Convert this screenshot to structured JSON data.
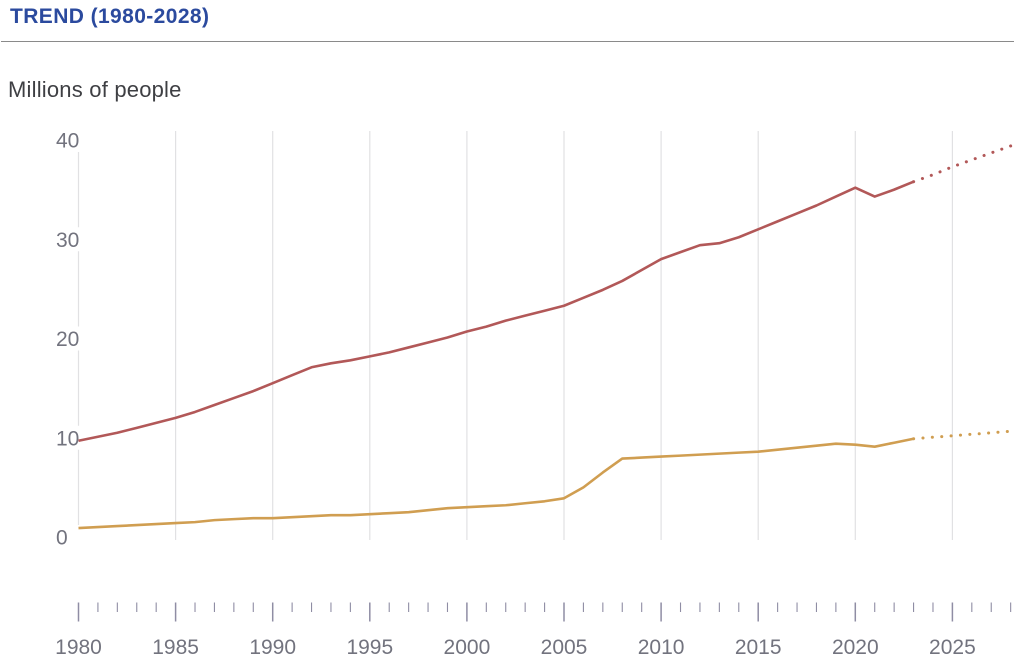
{
  "header": {
    "title": "TREND (1980-2028)",
    "unit_label": "Millions of people"
  },
  "colors": {
    "title": "#2b4a9e",
    "divider": "#8a8a8a",
    "axis_text": "#72737e",
    "tick": "#8f8da4",
    "grid": "#e1e1e3",
    "upper_series": "#b25858",
    "lower_series": "#d09e51"
  },
  "chart_data": {
    "type": "line",
    "title": "TREND (1980-2028)",
    "xlabel": "",
    "ylabel": "Millions of people",
    "xlim": [
      1980,
      2028
    ],
    "ylim": [
      0,
      40
    ],
    "y_ticks": [
      0,
      10,
      20,
      30,
      40
    ],
    "x_major_ticks": [
      1980,
      1985,
      1990,
      1995,
      2000,
      2005,
      2010,
      2015,
      2020,
      2025
    ],
    "x_minor_tick_range": [
      1980,
      2028
    ],
    "grid": "vertical-only",
    "legend_position": "none",
    "series": [
      {
        "name": "upper-line",
        "color": "#b25858",
        "solid": {
          "x": [
            1980,
            1981,
            1982,
            1983,
            1984,
            1985,
            1986,
            1987,
            1988,
            1989,
            1990,
            1991,
            1992,
            1993,
            1994,
            1995,
            1996,
            1997,
            1998,
            1999,
            2000,
            2001,
            2002,
            2003,
            2004,
            2005,
            2006,
            2007,
            2008,
            2009,
            2010,
            2011,
            2012,
            2013,
            2014,
            2015,
            2016,
            2017,
            2018,
            2019,
            2020,
            2021,
            2022,
            2023
          ],
          "y": [
            9.7,
            10.1,
            10.5,
            11.0,
            11.5,
            12.0,
            12.6,
            13.3,
            14.0,
            14.7,
            15.5,
            16.3,
            17.1,
            17.5,
            17.8,
            18.2,
            18.6,
            19.1,
            19.6,
            20.1,
            20.7,
            21.2,
            21.8,
            22.3,
            22.8,
            23.3,
            24.1,
            24.9,
            25.8,
            26.9,
            28.0,
            28.7,
            29.4,
            29.6,
            30.2,
            31.0,
            31.8,
            32.6,
            33.4,
            34.3,
            35.2,
            34.3,
            35.0,
            35.8
          ]
        },
        "projection": {
          "style": "dotted",
          "x": [
            2023,
            2024,
            2025,
            2026,
            2027,
            2028
          ],
          "y": [
            35.8,
            36.5,
            37.3,
            38.0,
            38.7,
            39.4
          ]
        }
      },
      {
        "name": "lower-line",
        "color": "#d09e51",
        "solid": {
          "x": [
            1980,
            1981,
            1982,
            1983,
            1984,
            1985,
            1986,
            1987,
            1988,
            1989,
            1990,
            1991,
            1992,
            1993,
            1994,
            1995,
            1996,
            1997,
            1998,
            1999,
            2000,
            2001,
            2002,
            2003,
            2004,
            2005,
            2006,
            2007,
            2008,
            2009,
            2010,
            2011,
            2012,
            2013,
            2014,
            2015,
            2016,
            2017,
            2018,
            2019,
            2020,
            2021,
            2022,
            2023
          ],
          "y": [
            0.9,
            1.0,
            1.1,
            1.2,
            1.3,
            1.4,
            1.5,
            1.7,
            1.8,
            1.9,
            1.9,
            2.0,
            2.1,
            2.2,
            2.2,
            2.3,
            2.4,
            2.5,
            2.7,
            2.9,
            3.0,
            3.1,
            3.2,
            3.4,
            3.6,
            3.9,
            5.0,
            6.5,
            7.9,
            8.0,
            8.1,
            8.2,
            8.3,
            8.4,
            8.5,
            8.6,
            8.8,
            9.0,
            9.2,
            9.4,
            9.3,
            9.1,
            9.5,
            9.9
          ]
        },
        "projection": {
          "style": "dotted",
          "x": [
            2023,
            2024,
            2025,
            2026,
            2027,
            2028
          ],
          "y": [
            9.9,
            10.05,
            10.2,
            10.35,
            10.5,
            10.65
          ]
        }
      }
    ]
  }
}
